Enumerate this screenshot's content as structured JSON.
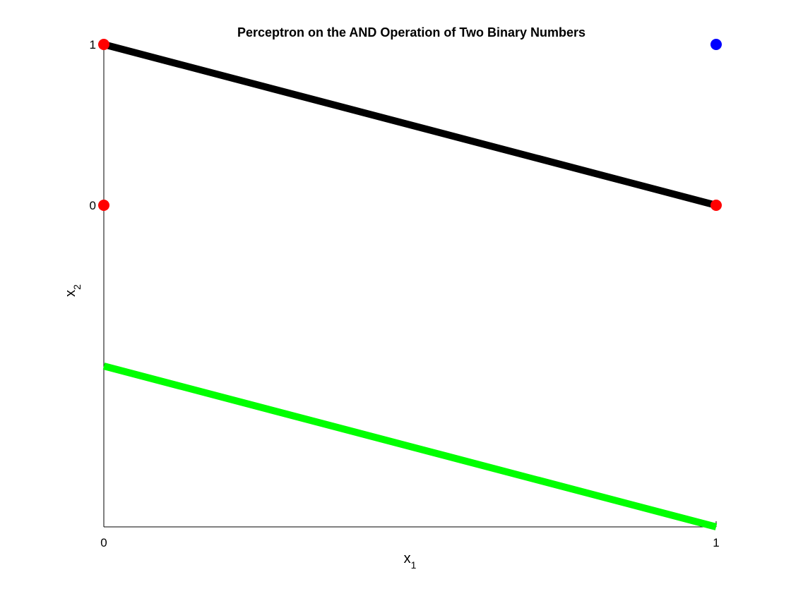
{
  "chart_data": {
    "type": "line",
    "title": "Perceptron on the AND Operation of Two Binary Numbers",
    "xlabel": {
      "main": "x",
      "subscript": "1"
    },
    "ylabel": {
      "main": "x",
      "subscript": "2"
    },
    "xlim": [
      0,
      1
    ],
    "ylim": [
      -2,
      1
    ],
    "x_ticks": [
      {
        "value": 0,
        "label": "0"
      },
      {
        "value": 1,
        "label": "1"
      }
    ],
    "y_ticks": [
      {
        "value": 0,
        "label": "0"
      },
      {
        "value": 1,
        "label": "1"
      }
    ],
    "grid": false,
    "points": [
      {
        "x": 0,
        "y": 0,
        "color": "#ff0000"
      },
      {
        "x": 0,
        "y": 1,
        "color": "#ff0000"
      },
      {
        "x": 1,
        "y": 0,
        "color": "#ff0000"
      },
      {
        "x": 1,
        "y": 1,
        "color": "#0000ff"
      }
    ],
    "lines": [
      {
        "x": [
          0,
          1
        ],
        "y": [
          1,
          0
        ],
        "color": "#000000"
      },
      {
        "x": [
          0,
          1
        ],
        "y": [
          -1,
          -2
        ],
        "color": "#00ff00"
      }
    ]
  }
}
